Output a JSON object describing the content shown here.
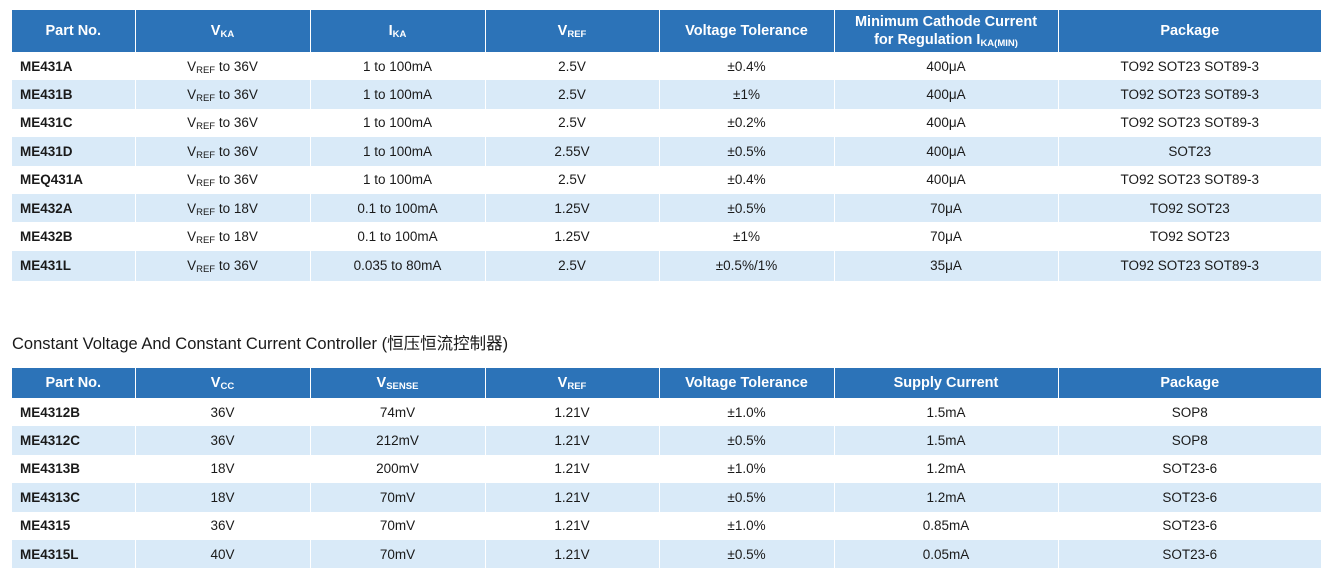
{
  "table1": {
    "headers": {
      "part": "Part No.",
      "vka_main": "V",
      "vka_sub": "KA",
      "ika_main": "I",
      "ika_sub": "KA",
      "vref_main": "V",
      "vref_sub": "REF",
      "tolerance": "Voltage Tolerance",
      "mincathode_line1": "Minimum Cathode Current",
      "mincathode_line2": "for Regulation I",
      "mincathode_sub": "KA(MIN)",
      "package": "Package"
    },
    "rows": [
      {
        "part": "ME431A",
        "vka_main": "V",
        "vka_sub": "REF",
        "vka_rest": " to 36V",
        "ika": "1 to 100mA",
        "vref": "2.5V",
        "tolerance": "±0.4%",
        "min_current": "400μA",
        "package": "TO92 SOT23 SOT89-3"
      },
      {
        "part": "ME431B",
        "vka_main": "V",
        "vka_sub": "REF",
        "vka_rest": " to 36V",
        "ika": "1 to 100mA",
        "vref": "2.5V",
        "tolerance": "±1%",
        "min_current": "400μA",
        "package": "TO92 SOT23 SOT89-3"
      },
      {
        "part": "ME431C",
        "vka_main": "V",
        "vka_sub": "REF",
        "vka_rest": " to 36V",
        "ika": "1 to 100mA",
        "vref": "2.5V",
        "tolerance": "±0.2%",
        "min_current": "400μA",
        "package": "TO92 SOT23 SOT89-3"
      },
      {
        "part": "ME431D",
        "vka_main": "V",
        "vka_sub": "REF",
        "vka_rest": " to 36V",
        "ika": "1 to 100mA",
        "vref": "2.55V",
        "tolerance": "±0.5%",
        "min_current": "400μA",
        "package": "SOT23"
      },
      {
        "part": "MEQ431A",
        "vka_main": "V",
        "vka_sub": "REF",
        "vka_rest": " to 36V",
        "ika": "1 to 100mA",
        "vref": "2.5V",
        "tolerance": "±0.4%",
        "min_current": "400μA",
        "package": "TO92 SOT23 SOT89-3"
      },
      {
        "part": "ME432A",
        "vka_main": "V",
        "vka_sub": "REF",
        "vka_rest": " to 18V",
        "ika": "0.1 to 100mA",
        "vref": "1.25V",
        "tolerance": "±0.5%",
        "min_current": "70μA",
        "package": "TO92 SOT23"
      },
      {
        "part": "ME432B",
        "vka_main": "V",
        "vka_sub": "REF",
        "vka_rest": " to 18V",
        "ika": "0.1 to 100mA",
        "vref": "1.25V",
        "tolerance": "±1%",
        "min_current": "70μA",
        "package": "TO92 SOT23"
      },
      {
        "part": "ME431L",
        "vka_main": "V",
        "vka_sub": "REF",
        "vka_rest": " to 36V",
        "ika": "0.035 to 80mA",
        "vref": "2.5V",
        "tolerance": "±0.5%/1%",
        "min_current": "35μA",
        "package": "TO92 SOT23 SOT89-3"
      }
    ]
  },
  "section2_title": "Constant Voltage And Constant Current Controller (恒压恒流控制器)",
  "table2": {
    "headers": {
      "part": "Part No.",
      "vcc_main": "V",
      "vcc_sub": "CC",
      "vsense_main": "V",
      "vsense_sub": "SENSE",
      "vref_main": "V",
      "vref_sub": "REF",
      "tolerance": "Voltage Tolerance",
      "supply": "Supply Current",
      "package": "Package"
    },
    "rows": [
      {
        "part": "ME4312B",
        "vcc": "36V",
        "vsense": "74mV",
        "vref": "1.21V",
        "tolerance": "±1.0%",
        "supply": "1.5mA",
        "package": "SOP8"
      },
      {
        "part": "ME4312C",
        "vcc": "36V",
        "vsense": "212mV",
        "vref": "1.21V",
        "tolerance": "±0.5%",
        "supply": "1.5mA",
        "package": "SOP8"
      },
      {
        "part": "ME4313B",
        "vcc": "18V",
        "vsense": "200mV",
        "vref": "1.21V",
        "tolerance": "±1.0%",
        "supply": "1.2mA",
        "package": "SOT23-6"
      },
      {
        "part": "ME4313C",
        "vcc": "18V",
        "vsense": "70mV",
        "vref": "1.21V",
        "tolerance": "±0.5%",
        "supply": "1.2mA",
        "package": "SOT23-6"
      },
      {
        "part": "ME4315",
        "vcc": "36V",
        "vsense": "70mV",
        "vref": "1.21V",
        "tolerance": "±1.0%",
        "supply": "0.85mA",
        "package": "SOT23-6"
      },
      {
        "part": "ME4315L",
        "vcc": "40V",
        "vsense": "70mV",
        "vref": "1.21V",
        "tolerance": "±0.5%",
        "supply": "0.05mA",
        "package": "SOT23-6"
      }
    ]
  }
}
